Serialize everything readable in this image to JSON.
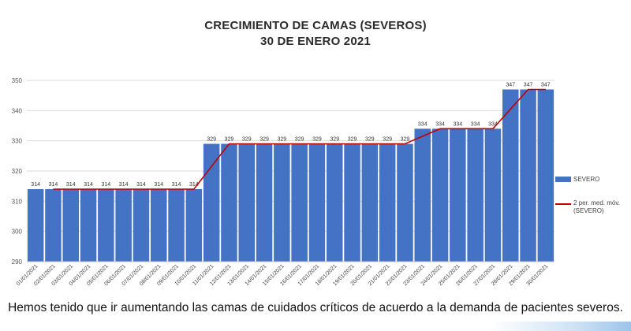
{
  "chart_data": {
    "type": "bar",
    "title": "CRECIMIENTO DE CAMAS (SEVEROS)",
    "subtitle": "30 DE ENERO 2021",
    "xlabel": "",
    "ylabel": "",
    "ylim": [
      290,
      350
    ],
    "yticks": [
      290,
      300,
      310,
      320,
      330,
      340,
      350
    ],
    "grid": true,
    "legend_position": "right",
    "categories": [
      "01/01/2021",
      "02/01/2021",
      "03/01/2021",
      "04/01/2021",
      "05/01/2021",
      "06/01/2021",
      "07/01/2021",
      "08/01/2021",
      "09/01/2021",
      "10/01/2021",
      "11/01/2021",
      "12/01/2021",
      "13/01/2021",
      "14/01/2021",
      "15/01/2021",
      "16/01/2021",
      "17/01/2021",
      "18/01/2021",
      "19/01/2021",
      "20/01/2021",
      "21/01/2021",
      "22/01/2021",
      "23/01/2021",
      "24/01/2021",
      "25/01/2021",
      "26/01/2021",
      "27/01/2021",
      "28/01/2021",
      "29/01/2021",
      "30/01/2021"
    ],
    "series": [
      {
        "name": "SEVERO",
        "kind": "bar",
        "color": "#4472c4",
        "values": [
          314,
          314,
          314,
          314,
          314,
          314,
          314,
          314,
          314,
          314,
          329,
          329,
          329,
          329,
          329,
          329,
          329,
          329,
          329,
          329,
          329,
          329,
          334,
          334,
          334,
          334,
          334,
          347,
          347,
          347
        ]
      },
      {
        "name": "2 per. med. móv. (SEVERO)",
        "kind": "line",
        "color": "#c00000",
        "values": [
          null,
          314,
          314,
          314,
          314,
          314,
          314,
          314,
          314,
          314,
          321.5,
          329,
          329,
          329,
          329,
          329,
          329,
          329,
          329,
          329,
          329,
          329,
          331.5,
          334,
          334,
          334,
          334,
          340.5,
          347,
          347
        ]
      }
    ]
  },
  "legend": {
    "bar_label": "SEVERO",
    "line_label_1": "2 per. med. móv.",
    "line_label_2": "(SEVERO)"
  },
  "caption": "Hemos tenido que ir aumentando las camas de cuidados críticos de acuerdo a la demanda de pacientes severos."
}
